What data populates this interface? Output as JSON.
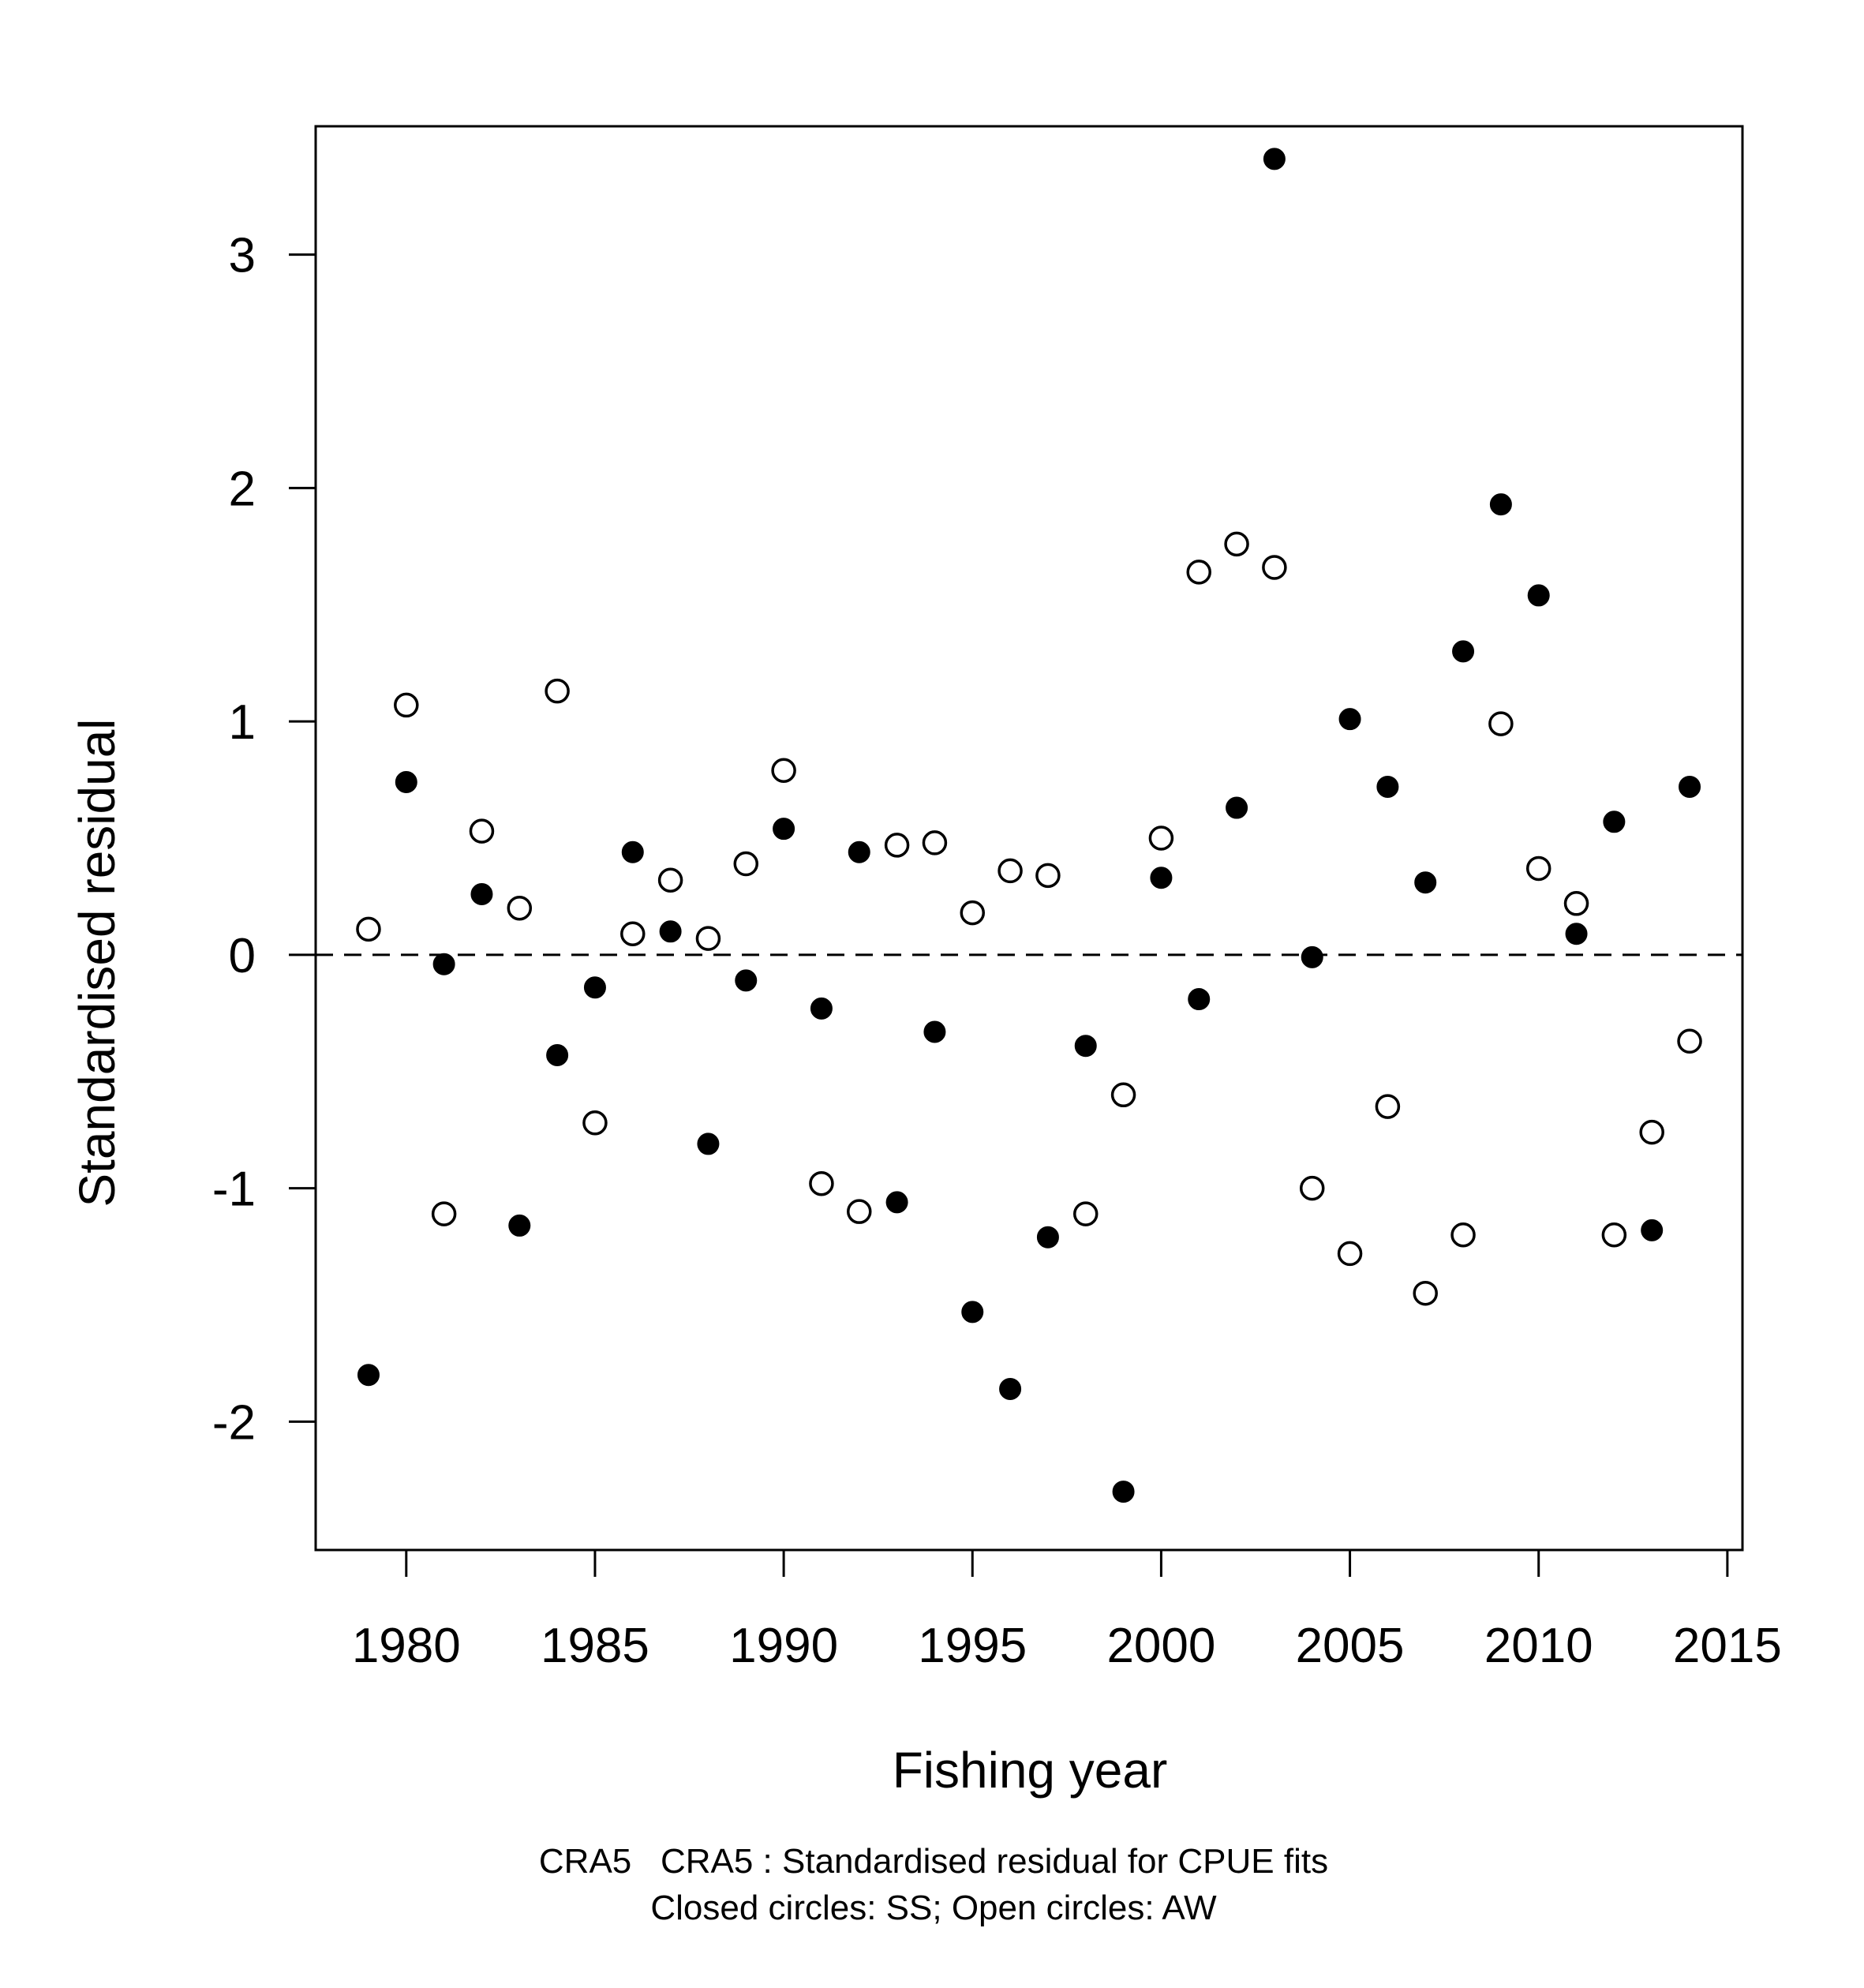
{
  "chart_data": {
    "type": "scatter",
    "title": "",
    "xlabel": "Fishing year",
    "ylabel": "Standardised residual",
    "xlim": [
      1977.6,
      2015.4
    ],
    "ylim": [
      -2.55,
      3.55
    ],
    "x_ticks": [
      1980,
      1985,
      1990,
      1995,
      2000,
      2005,
      2010,
      2015
    ],
    "y_ticks": [
      -2,
      -1,
      0,
      1,
      2,
      3
    ],
    "reference_line": {
      "y": 0,
      "style": "dashed"
    },
    "grid": false,
    "legend": "none",
    "caption_lines": [
      "CRA5   CRA5 : Standardised residual for CPUE fits",
      "Closed circles: SS; Open circles: AW"
    ],
    "series": [
      {
        "marker": "closed circle",
        "color": "#000000",
        "x": [
          1979,
          1980,
          1981,
          1982,
          1983,
          1984,
          1985,
          1986,
          1987,
          1988,
          1989,
          1990,
          1991,
          1992,
          1993,
          1994,
          1995,
          1996,
          1997,
          1998,
          1999,
          2000,
          2001,
          2002,
          2003,
          2004,
          2005,
          2006,
          2007,
          2008,
          2009,
          2010,
          2011,
          2012,
          2013,
          2014
        ],
        "y": [
          -1.8,
          0.74,
          -0.04,
          0.26,
          -1.16,
          -0.43,
          -0.14,
          0.44,
          0.1,
          -0.81,
          -0.11,
          0.54,
          -0.23,
          0.44,
          -1.06,
          -0.33,
          -1.53,
          -1.86,
          -1.21,
          -0.39,
          -2.3,
          0.33,
          -0.19,
          0.63,
          3.41,
          -0.01,
          1.01,
          0.72,
          0.31,
          1.3,
          1.93,
          1.54,
          0.09,
          0.57,
          -1.18,
          0.72
        ]
      },
      {
        "marker": "open circle",
        "color": "#000000",
        "x": [
          1979,
          1980,
          1981,
          1982,
          1983,
          1984,
          1985,
          1986,
          1987,
          1988,
          1989,
          1990,
          1991,
          1992,
          1993,
          1994,
          1995,
          1996,
          1997,
          1998,
          1999,
          2000,
          2001,
          2002,
          2003,
          2004,
          2005,
          2006,
          2007,
          2008,
          2009,
          2010,
          2011,
          2012,
          2013,
          2014
        ],
        "y": [
          0.11,
          1.07,
          -1.11,
          0.53,
          0.2,
          1.13,
          -0.72,
          0.09,
          0.32,
          0.07,
          0.39,
          0.79,
          -0.98,
          -1.1,
          0.47,
          0.48,
          0.18,
          0.36,
          0.34,
          -1.11,
          -0.6,
          0.5,
          1.64,
          1.76,
          1.66,
          -1.0,
          -1.28,
          -0.65,
          -1.45,
          -1.2,
          0.99,
          0.37,
          0.22,
          -1.2,
          -0.76,
          -0.37
        ]
      }
    ]
  }
}
